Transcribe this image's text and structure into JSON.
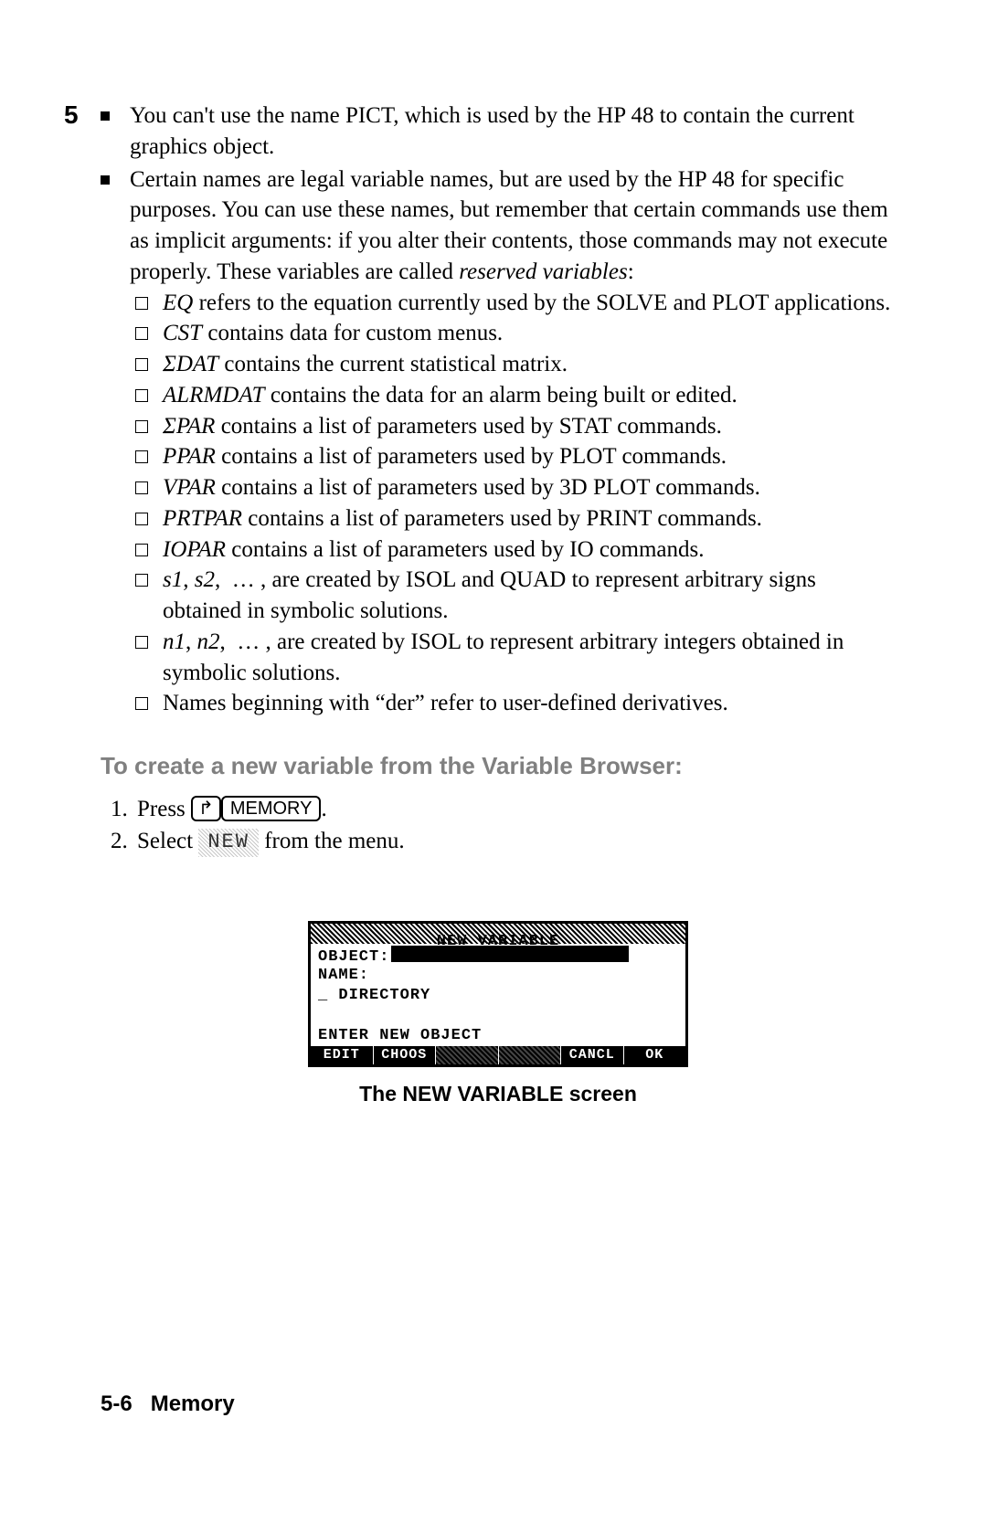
{
  "chapter_num": "5",
  "bullets": [
    {
      "text_html": "You can't use the name PICT, which is used by the HP 48 to contain the current graphics object."
    },
    {
      "text_html": "Certain names are legal variable names, but are used by the HP 48 for specific purposes. You can use these names, but remember that certain commands use them as implicit arguments: if you alter their contents, those commands may not execute properly. These variables are called <span class=\"ital\">reserved variables</span>:",
      "sub": [
        "<span class=\"ital\">EQ</span> refers to the equation currently used by the SOLVE and PLOT applications.",
        "<span class=\"ital\">CST</span> contains data for custom menus.",
        "<span class=\"ital\">ΣDAT</span> contains the current statistical matrix.",
        "<span class=\"ital\">ALRMDAT</span> contains the data for an alarm being built or edited.",
        "<span class=\"ital\">ΣPAR</span> contains a list of parameters used by STAT commands.",
        "<span class=\"ital\">PPAR</span> contains a list of parameters used by PLOT commands.",
        "<span class=\"ital\">VPAR</span> contains a list of parameters used by 3D PLOT commands.",
        "<span class=\"ital\">PRTPAR</span> contains a list of parameters used by PRINT commands.",
        "<span class=\"ital\">IOPAR</span> contains a list of parameters used by IO commands.",
        "<span class=\"ital\">s1</span>, <span class=\"ital\">s2</span>, &nbsp;…&nbsp;, are created by ISOL and QUAD to represent arbitrary signs obtained in symbolic solutions.",
        "<span class=\"ital\">n1</span>, <span class=\"ital\">n2</span>, &nbsp;…&nbsp;, are created by ISOL to represent arbitrary integers obtained in symbolic solutions.",
        "Names beginning with “der” refer to user-defined derivatives."
      ]
    }
  ],
  "subheading": "To create a new variable from the Variable Browser:",
  "steps": {
    "s1_prefix": "Press ",
    "s1_shift_glyph": "↱",
    "s1_key": "MEMORY",
    "s1_suffix": ".",
    "s2_prefix": "Select ",
    "s2_soft": "NEW",
    "s2_suffix": " from the menu."
  },
  "calc": {
    "title": "NEW VARIABLE",
    "rows": {
      "object": "OBJECT:",
      "name": "NAME:",
      "dir": "_ DIRECTORY",
      "prompt": "ENTER NEW OBJECT"
    },
    "menu": [
      "EDIT",
      "CHOOS",
      "",
      "",
      "CANCL",
      "OK"
    ]
  },
  "figcaption": "The NEW VARIABLE screen",
  "footer": {
    "page": "5-6",
    "section": "Memory"
  }
}
